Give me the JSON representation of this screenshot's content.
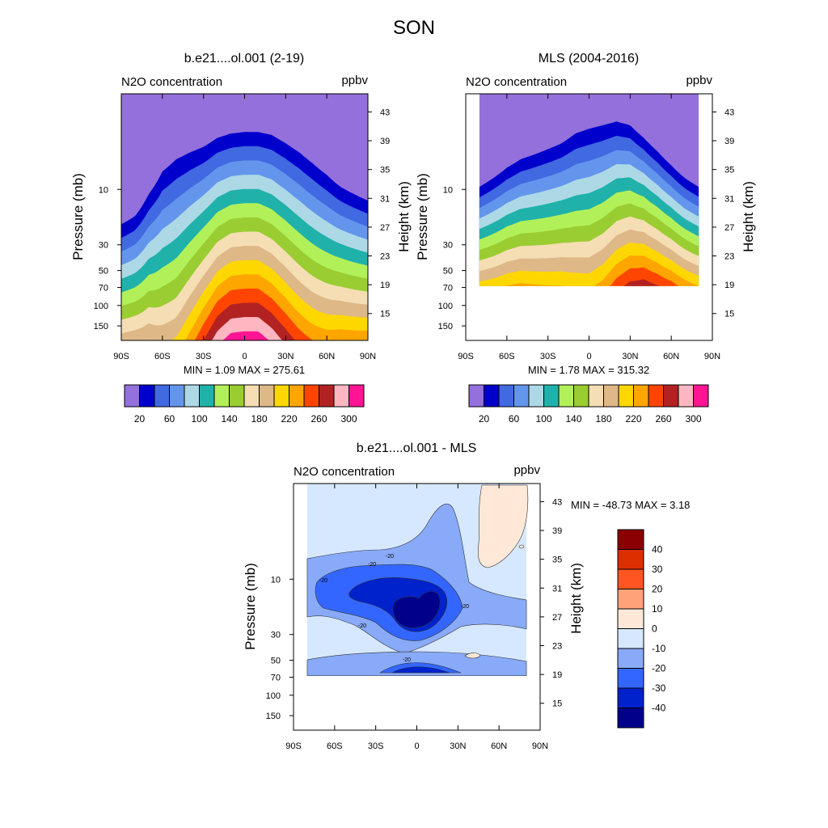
{
  "figure": {
    "title": "SON"
  },
  "chart_data": [
    {
      "type": "contour",
      "title": "b.e21....ol.001 (2-19)",
      "left_label": "N2O concentration",
      "right_label": "ppbv",
      "ylabel": "Pressure (mb)",
      "ylabel_right": "Height (km)",
      "x_ticks": [
        "90S",
        "60S",
        "30S",
        "0",
        "30N",
        "60N",
        "90N"
      ],
      "xlim": [
        -90,
        90
      ],
      "y_ticks": [
        {
          "p": 10,
          "label": "10"
        },
        {
          "p": 30,
          "label": "30"
        },
        {
          "p": 50,
          "label": "50"
        },
        {
          "p": 70,
          "label": "70"
        },
        {
          "p": 100,
          "label": "100"
        },
        {
          "p": 150,
          "label": "150"
        }
      ],
      "ylim_mb": [
        200,
        1.5
      ],
      "height_ticks": [
        {
          "km": 43,
          "label": "43"
        },
        {
          "km": 39,
          "label": "39"
        },
        {
          "km": 35,
          "label": "35"
        },
        {
          "km": 31,
          "label": "31"
        },
        {
          "km": 27,
          "label": "27"
        },
        {
          "km": 23,
          "label": "23"
        },
        {
          "km": 19,
          "label": "19"
        },
        {
          "km": 15,
          "label": "15"
        }
      ],
      "stats": "MIN =   1.09  MAX = 275.61",
      "data_lat_range": [
        -90,
        90
      ],
      "data_p_bottom": 200,
      "levels": [
        20,
        40,
        60,
        80,
        100,
        120,
        140,
        160,
        180,
        200,
        220,
        240,
        260,
        280,
        300
      ],
      "contour_profiles": {
        "lat": [
          -90,
          -80,
          -70,
          -60,
          -50,
          -40,
          -30,
          -20,
          -10,
          0,
          10,
          20,
          30,
          40,
          50,
          60,
          70,
          80,
          90
        ],
        "top_level_p": [
          20,
          17,
          11,
          7,
          5.5,
          4.8,
          4.3,
          3.6,
          3.3,
          3.2,
          3.2,
          3.4,
          4,
          4.8,
          6,
          7.5,
          9.5,
          11,
          12.5
        ],
        "span_decades": [
          1.1,
          1.15,
          1.3,
          1.55,
          1.6,
          1.45,
          1.3,
          1.2,
          1.15,
          1.15,
          1.15,
          1.2,
          1.25,
          1.3,
          1.3,
          1.25,
          1.15,
          1.1,
          1.05
        ]
      }
    },
    {
      "type": "contour",
      "title": "MLS (2004-2016)",
      "left_label": "N2O concentration",
      "right_label": "ppbv",
      "ylabel": "Pressure (mb)",
      "ylabel_right": "Height (km)",
      "x_ticks": [
        "90S",
        "60S",
        "30S",
        "0",
        "30N",
        "60N",
        "90N"
      ],
      "xlim": [
        -90,
        90
      ],
      "y_ticks": [
        {
          "p": 10,
          "label": "10"
        },
        {
          "p": 30,
          "label": "30"
        },
        {
          "p": 50,
          "label": "50"
        },
        {
          "p": 70,
          "label": "70"
        },
        {
          "p": 100,
          "label": "100"
        },
        {
          "p": 150,
          "label": "150"
        }
      ],
      "ylim_mb": [
        200,
        1.5
      ],
      "height_ticks": [
        {
          "km": 43,
          "label": "43"
        },
        {
          "km": 39,
          "label": "39"
        },
        {
          "km": 35,
          "label": "35"
        },
        {
          "km": 31,
          "label": "31"
        },
        {
          "km": 27,
          "label": "27"
        },
        {
          "km": 23,
          "label": "23"
        },
        {
          "km": 19,
          "label": "19"
        },
        {
          "km": 15,
          "label": "15"
        }
      ],
      "stats": "MIN =   1.78  MAX = 315.32",
      "data_lat_range": [
        -80,
        80
      ],
      "data_p_bottom": 68,
      "levels": [
        20,
        40,
        60,
        80,
        100,
        120,
        140,
        160,
        180,
        200,
        220,
        240,
        260,
        280,
        300
      ],
      "contour_profiles": {
        "lat": [
          -80,
          -70,
          -60,
          -50,
          -40,
          -30,
          -20,
          -10,
          0,
          10,
          20,
          30,
          40,
          50,
          60,
          70,
          80
        ],
        "top_level_p": [
          9.5,
          8,
          6.5,
          5.5,
          5,
          4.5,
          4,
          3.3,
          3,
          2.8,
          2.6,
          2.8,
          3.6,
          4.7,
          6.2,
          8,
          9.5
        ],
        "span_decades": [
          0.85,
          0.9,
          0.95,
          1.0,
          1.05,
          1.1,
          1.15,
          1.25,
          1.3,
          1.25,
          1.15,
          1.05,
          0.95,
          0.9,
          0.85,
          0.82,
          0.8
        ]
      }
    },
    {
      "type": "contour",
      "title": "b.e21....ol.001 - MLS",
      "left_label": "N2O concentration",
      "right_label": "ppbv",
      "ylabel": "Pressure (mb)",
      "ylabel_right": "Height (km)",
      "x_ticks": [
        "90S",
        "60S",
        "30S",
        "0",
        "30N",
        "60N",
        "90N"
      ],
      "xlim": [
        -90,
        90
      ],
      "y_ticks": [
        {
          "p": 10,
          "label": "10"
        },
        {
          "p": 30,
          "label": "30"
        },
        {
          "p": 50,
          "label": "50"
        },
        {
          "p": 70,
          "label": "70"
        },
        {
          "p": 100,
          "label": "100"
        },
        {
          "p": 150,
          "label": "150"
        }
      ],
      "ylim_mb": [
        200,
        1.5
      ],
      "height_ticks": [
        {
          "km": 43,
          "label": "43"
        },
        {
          "km": 39,
          "label": "39"
        },
        {
          "km": 35,
          "label": "35"
        },
        {
          "km": 31,
          "label": "31"
        },
        {
          "km": 27,
          "label": "27"
        },
        {
          "km": 23,
          "label": "23"
        },
        {
          "km": 19,
          "label": "19"
        },
        {
          "km": 15,
          "label": "15"
        }
      ],
      "stats": "MIN = -48.73  MAX =   3.18",
      "data_lat_range": [
        -80,
        80
      ],
      "data_p_bottom": 68,
      "levels": [
        -40,
        -30,
        -20,
        -10,
        0,
        10,
        20,
        30,
        40
      ],
      "contour_labels": [
        "-20",
        "-20",
        "-20",
        "-20",
        "-20",
        "-20"
      ]
    }
  ],
  "colorbar_top": {
    "colors": [
      "#9370db",
      "#0000cd",
      "#4169e1",
      "#6495ed",
      "#add8e6",
      "#20b2aa",
      "#b2f05a",
      "#9acd32",
      "#f5deb3",
      "#deb887",
      "#ffd700",
      "#ffa500",
      "#ff4500",
      "#b22222",
      "#ffb6c1",
      "#ff1493"
    ],
    "labels": [
      "20",
      "60",
      "100",
      "140",
      "180",
      "220",
      "260",
      "300"
    ]
  },
  "colorbar_diff": {
    "colors": [
      "#00008b",
      "#0022cc",
      "#3366ff",
      "#88aaf8",
      "#d6e8ff",
      "#ffe8d8",
      "#ffa27a",
      "#ff5522",
      "#dd2e00",
      "#8b0000"
    ],
    "labels": [
      "-40",
      "-30",
      "-20",
      "-10",
      "0",
      "10",
      "20",
      "30",
      "40"
    ]
  }
}
